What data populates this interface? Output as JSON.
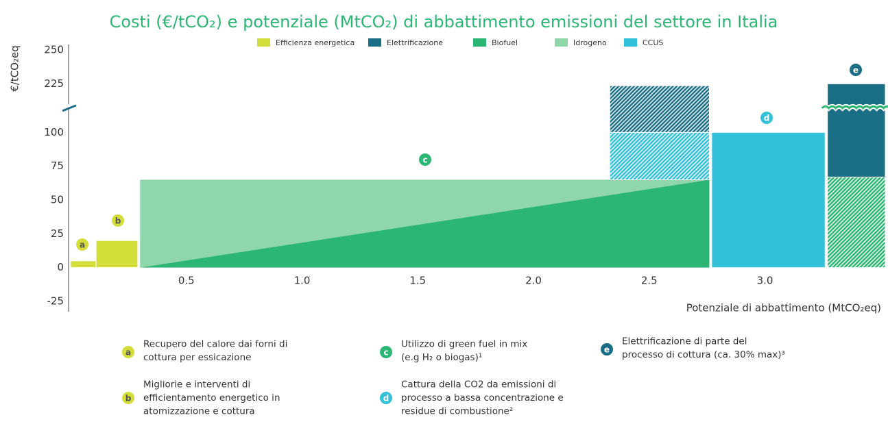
{
  "chart_data": {
    "type": "macc",
    "title": "Costi (€/tCO₂) e potenziale (MtCO₂) di abbattimento emissioni del settore in Italia",
    "ylabel": "€/tCO₂eq",
    "xlabel": "Potenziale di abbattimento (MtCO₂eq)",
    "xlim": [
      0,
      3.52
    ],
    "xticks": [
      0.5,
      {
        "value": 1,
        "label": "1.0"
      },
      1.5,
      {
        "value": 2,
        "label": "2.0"
      },
      2.5,
      {
        "value": 3,
        "label": "3.0"
      }
    ],
    "ylim": [
      -25,
      250
    ],
    "yticks": [
      -25,
      0,
      25,
      50,
      75,
      100,
      225,
      250
    ],
    "axis_break": true,
    "series": [
      {
        "name": "Efficienza energetica",
        "color": "#d3de3a",
        "marks": [
          {
            "x": [
              0,
              0.11
            ],
            "y": [
              0,
              5
            ]
          },
          {
            "x": [
              0.11,
              0.29
            ],
            "y": [
              0,
              20
            ]
          }
        ]
      },
      {
        "name": "Elettrificazione",
        "color": "#1a6f87",
        "marks": [
          {
            "x": [
              2.33,
              2.76
            ],
            "y": [
              100,
              220
            ],
            "hatch": true
          },
          {
            "x": [
              3.27,
              3.52
            ],
            "y": [
              67,
              225
            ]
          }
        ]
      },
      {
        "name": "Biofuel",
        "color": "#2bb673",
        "marks": [
          {
            "points": [
              [
                0.3,
                0
              ],
              [
                2.76,
                65
              ],
              [
                2.76,
                0
              ]
            ]
          },
          {
            "x": [
              3.27,
              3.52
            ],
            "y": [
              0,
              67
            ],
            "hatch": true
          }
        ]
      },
      {
        "name": "Idrogeno",
        "color": "#8fd6ab",
        "marks": [
          {
            "points": [
              [
                0.3,
                0
              ],
              [
                0.3,
                65
              ],
              [
                2.76,
                65
              ]
            ]
          }
        ]
      },
      {
        "name": "CCUS",
        "color": "#33c0d9",
        "marks": [
          {
            "x": [
              2.33,
              2.76
            ],
            "y": [
              65,
              100
            ],
            "hatch": true
          },
          {
            "x": [
              2.77,
              3.26
            ],
            "y": [
              0,
              100
            ]
          }
        ]
      }
    ],
    "annotations": [
      {
        "label": "a",
        "color": "#d3de3a",
        "text": [
          "Recupero del calore dai forni di",
          "cottura per essicazione"
        ]
      },
      {
        "label": "b",
        "color": "#d3de3a",
        "text": [
          "Migliorie e interventi di",
          "efficientamento energetico in",
          "atomizzazione e cottura"
        ]
      },
      {
        "label": "c",
        "color": "#2bb673",
        "text": [
          "Utilizzo di green fuel in mix",
          "(e.g H₂ o biogas)¹"
        ]
      },
      {
        "label": "d",
        "color": "#33c0d9",
        "text": [
          "Cattura della CO2 da emissioni di",
          "processo a bassa concentrazione e",
          "residue di combustione²"
        ]
      },
      {
        "label": "e",
        "color": "#1a6f87",
        "text": [
          "Elettrificazione di parte del",
          "processo di cottura (ca. 30% max)³"
        ]
      }
    ]
  }
}
